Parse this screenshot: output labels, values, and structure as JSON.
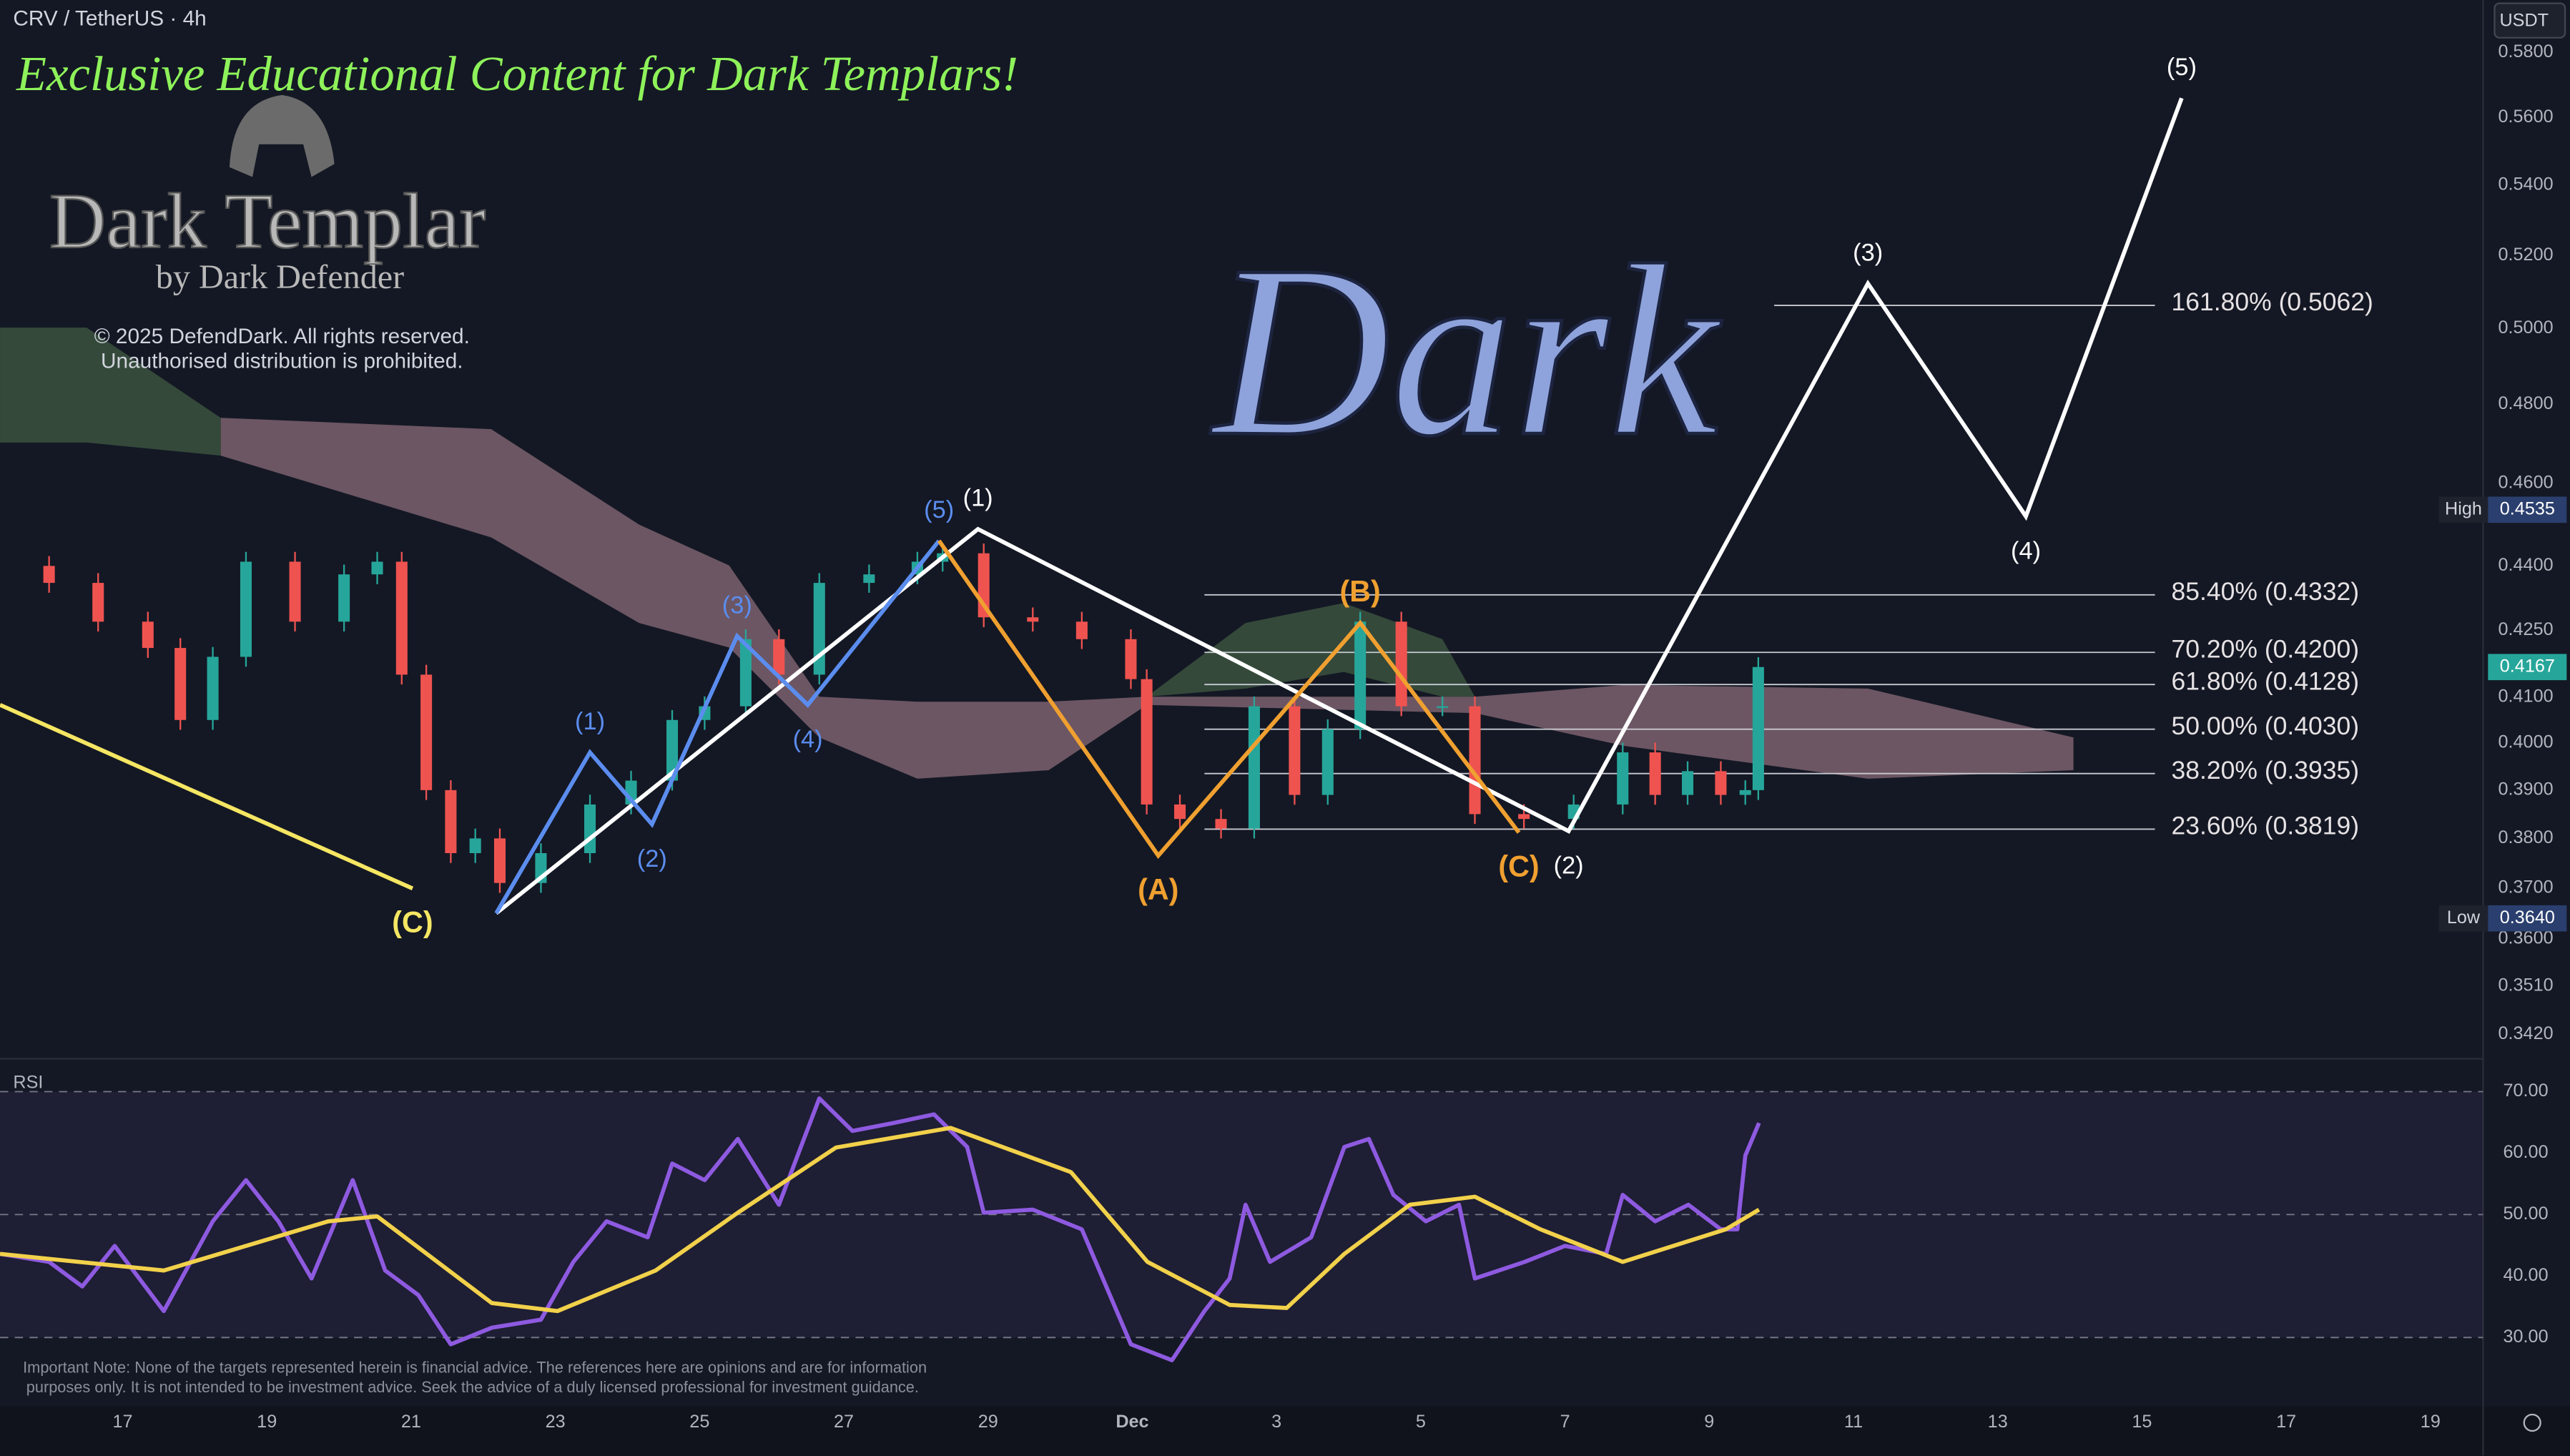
{
  "header": {
    "symbol": "CRV / TetherUS · 4h",
    "currency": "USDT"
  },
  "watermark": {
    "banner": "Exclusive Educational Content for Dark Templars!",
    "logo_title": "Dark Templar",
    "logo_subtitle": "by Dark Defender",
    "copyright": [
      "© 2025 DefendDark. All rights reserved.",
      "Unauthorised distribution is prohibited."
    ],
    "big_text": "Dark"
  },
  "footer_note": [
    "Important Note: None of the targets represented herein is financial advice. The references here are opinions and are for information",
    "purposes only. It is not intended to be investment advice. Seek the advice of a duly licensed professional for investment guidance."
  ],
  "chart_data": [
    {
      "type": "candlestick",
      "log_scale": true,
      "grid": false,
      "up_color": "#26a69a",
      "down_color": "#ef5350",
      "xlim": [
        15.3,
        49.73
      ],
      "ylim": [
        0.3378,
        0.5966
      ],
      "yticks": [
        {
          "value": 0.58,
          "label": "0.5800"
        },
        {
          "value": 0.56,
          "label": "0.5600"
        },
        {
          "value": 0.54,
          "label": "0.5400"
        },
        {
          "value": 0.52,
          "label": "0.5200"
        },
        {
          "value": 0.5,
          "label": "0.5000"
        },
        {
          "value": 0.48,
          "label": "0.4800"
        },
        {
          "value": 0.46,
          "label": "0.4600"
        },
        {
          "value": 0.44,
          "label": "0.4400"
        },
        {
          "value": 0.425,
          "label": "0.4250"
        },
        {
          "value": 0.41,
          "label": "0.4100"
        },
        {
          "value": 0.4,
          "label": "0.4000"
        },
        {
          "value": 0.39,
          "label": "0.3900"
        },
        {
          "value": 0.38,
          "label": "0.3800"
        },
        {
          "value": 0.37,
          "label": "0.3700"
        },
        {
          "value": 0.36,
          "label": "0.3600"
        },
        {
          "value": 0.351,
          "label": "0.3510"
        },
        {
          "value": 0.342,
          "label": "0.3420"
        }
      ],
      "x": [
        15.3,
        15.98,
        16.66,
        17.35,
        17.8,
        18.25,
        18.71,
        19.39,
        20.07,
        20.53,
        20.87,
        21.21,
        21.55,
        21.89,
        22.23,
        22.8,
        23.48,
        24.05,
        24.62,
        25.07,
        25.64,
        26.1,
        26.66,
        27.35,
        28.02,
        28.37,
        28.94,
        29.62,
        30.3,
        30.98,
        31.2,
        31.66,
        32.23,
        32.69,
        33.25,
        33.71,
        34.16,
        34.73,
        35.3,
        35.75,
        36.43,
        37.12,
        37.8,
        38.25,
        38.7,
        39.16,
        39.5,
        39.68
      ],
      "values": [
        0.44,
        0.436,
        0.427,
        0.421,
        0.405,
        0.419,
        0.441,
        0.427,
        0.438,
        0.441,
        0.415,
        0.39,
        0.377,
        0.38,
        0.371,
        0.377,
        0.387,
        0.392,
        0.405,
        0.408,
        0.423,
        0.415,
        0.436,
        0.438,
        0.441,
        0.443,
        0.428,
        0.427,
        0.423,
        0.414,
        0.387,
        0.384,
        0.382,
        0.408,
        0.389,
        0.403,
        0.427,
        0.408,
        0.408,
        0.385,
        0.384,
        0.387,
        0.398,
        0.389,
        0.394,
        0.389,
        0.39,
        0.4167
      ],
      "cloud": [
        {
          "color": "#8a6b78",
          "x": [
            18.36,
            22.11,
            24.16,
            25.41,
            26.66,
            28.02,
            29.84,
            31.2,
            35.75,
            37.82,
            41.2,
            44.05
          ],
          "upper": [
            0.4765,
            0.4736,
            0.4499,
            0.4401,
            0.4101,
            0.409,
            0.409,
            0.4101,
            0.4101,
            0.4127,
            0.4119,
            0.4012
          ],
          "lower": [
            0.4669,
            0.4468,
            0.4267,
            0.4211,
            0.4012,
            0.3924,
            0.3942,
            0.4083,
            0.4065,
            0.3994,
            0.3924,
            0.3942
          ]
        },
        {
          "color": "#3f5a42",
          "x": [
            15.3,
            16.5,
            18.36
          ],
          "upper": [
            0.5002,
            0.5002,
            0.4765
          ],
          "lower": [
            0.4702,
            0.4702,
            0.4669
          ]
        },
        {
          "color": "#3f5a42",
          "x": [
            31.2,
            32.57,
            33.93,
            35.3,
            35.75
          ],
          "upper": [
            0.4101,
            0.4267,
            0.4313,
            0.423,
            0.4101
          ],
          "lower": [
            0.4101,
            0.4119,
            0.4156,
            0.4101,
            0.4101
          ]
        }
      ],
      "waves": [
        {
          "color": "#ffffff",
          "x": [
            22.18,
            28.86,
            37.05,
            41.2,
            43.39,
            45.55
          ],
          "values": [
            0.365,
            0.4488,
            0.3815,
            0.5122,
            0.4519,
            0.5659
          ],
          "labels": [
            null,
            "(1)",
            "(2)",
            "(3)",
            "(4)",
            "(5)"
          ]
        },
        {
          "color": "#5b8def",
          "x": [
            22.18,
            23.48,
            24.34,
            25.52,
            26.5,
            28.32
          ],
          "values": [
            0.365,
            0.398,
            0.3829,
            0.4237,
            0.4083,
            0.446
          ],
          "labels": [
            null,
            "(1)",
            "(2)",
            "(3)",
            "(4)",
            "(5)"
          ]
        },
        {
          "color": "#f0a030",
          "x": [
            28.32,
            31.36,
            34.16,
            36.36
          ],
          "values": [
            0.446,
            0.3765,
            0.4267,
            0.3812
          ],
          "labels": [
            null,
            "(A)",
            "(B)",
            "(C)"
          ]
        },
        {
          "color": "#f5e663",
          "x": [
            15.3,
            21.02
          ],
          "values": [
            0.4083,
            0.3699
          ],
          "labels": [
            null,
            "(C)"
          ]
        }
      ],
      "fib_levels": [
        {
          "value": 0.5062,
          "label": "161.80% (0.5062)",
          "x": [
            39.9,
            45.18
          ]
        },
        {
          "value": 0.4332,
          "label": "85.40% (0.4332)",
          "x": [
            32.0,
            45.18
          ]
        },
        {
          "value": 0.42,
          "label": "70.20% (0.4200)",
          "x": [
            32.0,
            45.18
          ]
        },
        {
          "value": 0.4128,
          "label": "61.80% (0.4128)",
          "x": [
            32.0,
            45.18
          ]
        },
        {
          "value": 0.403,
          "label": "50.00% (0.4030)",
          "x": [
            32.0,
            45.18
          ]
        },
        {
          "value": 0.3935,
          "label": "38.20% (0.3935)",
          "x": [
            32.0,
            45.18
          ]
        },
        {
          "value": 0.3819,
          "label": "23.60% (0.3819)",
          "x": [
            32.0,
            45.18
          ]
        }
      ],
      "price_tags": [
        {
          "name": "High",
          "value": 0.4535,
          "color": "#2a3f6e"
        },
        {
          "name": "Low",
          "value": 0.364,
          "label": "0.3640",
          "color": "#2a3f6e"
        },
        {
          "value": 0.4167,
          "color": "#26a69a"
        }
      ]
    },
    {
      "type": "line",
      "title": "RSI",
      "grid": false,
      "xlim": [
        15.3,
        49.73
      ],
      "ylim": [
        18.8,
        74.8
      ],
      "yticks": [
        {
          "value": 70,
          "label": "70.00"
        },
        {
          "value": 60,
          "label": "60.00"
        },
        {
          "value": 50,
          "label": "50.00"
        },
        {
          "value": 40,
          "label": "40.00"
        },
        {
          "value": 30,
          "label": "30.00"
        }
      ],
      "xticks": [
        17,
        19,
        21,
        23,
        25,
        27,
        29,
        {
          "value": 31,
          "label": "Dec"
        },
        {
          "value": 33,
          "label": "3"
        },
        {
          "value": 35,
          "label": "5"
        },
        {
          "value": 37,
          "label": "7"
        },
        {
          "value": 39,
          "label": "9"
        },
        {
          "value": 41,
          "label": "11"
        },
        {
          "value": 43,
          "label": "13"
        },
        {
          "value": 45,
          "label": "15"
        },
        {
          "value": 47,
          "label": "17"
        },
        {
          "value": 49,
          "label": "19"
        }
      ],
      "band": [
        30,
        70
      ],
      "dashed_levels": [
        70,
        50,
        30
      ],
      "series": [
        {
          "color": "#8e5ae0",
          "x": [
            15.3,
            15.98,
            16.44,
            16.89,
            17.57,
            18.25,
            18.71,
            19.16,
            19.62,
            20.19,
            20.64,
            21.1,
            21.55,
            22.12,
            22.8,
            23.25,
            23.71,
            24.28,
            24.62,
            25.07,
            25.53,
            26.1,
            26.66,
            27.12,
            27.69,
            28.25,
            28.71,
            28.94,
            29.62,
            30.3,
            30.98,
            31.55,
            32.0,
            32.35,
            32.57,
            32.91,
            33.48,
            33.94,
            34.28,
            34.62,
            35.07,
            35.53,
            35.75,
            36.44,
            37.0,
            37.57,
            37.8,
            38.25,
            38.71,
            39.16,
            39.39,
            39.5,
            39.69
          ],
          "values": [
            43.6,
            42.3,
            38.3,
            44.9,
            34.3,
            48.9,
            55.6,
            48.9,
            39.6,
            55.6,
            40.9,
            36.9,
            28.9,
            31.6,
            32.9,
            42.3,
            48.9,
            46.3,
            58.3,
            55.6,
            62.3,
            51.6,
            68.9,
            63.6,
            64.9,
            66.3,
            61.0,
            50.3,
            50.8,
            47.6,
            28.9,
            26.3,
            34.3,
            39.6,
            51.6,
            42.3,
            46.3,
            61.0,
            62.3,
            53.2,
            48.9,
            51.6,
            39.6,
            42.3,
            44.9,
            43.6,
            53.2,
            48.9,
            51.6,
            47.6,
            47.6,
            59.6,
            64.9
          ]
        },
        {
          "color": "#f2d14b",
          "x": [
            15.3,
            17.57,
            19.85,
            20.53,
            22.12,
            23.03,
            24.39,
            25.53,
            26.89,
            28.48,
            30.15,
            31.21,
            32.35,
            33.14,
            33.94,
            34.85,
            35.75,
            36.66,
            37.8,
            39.23,
            39.69
          ],
          "values": [
            43.6,
            40.9,
            48.9,
            49.7,
            35.6,
            34.3,
            40.9,
            50.3,
            60.9,
            64.1,
            56.9,
            42.3,
            35.3,
            34.8,
            43.6,
            51.6,
            52.9,
            47.6,
            42.3,
            47.6,
            50.8
          ]
        }
      ]
    }
  ]
}
